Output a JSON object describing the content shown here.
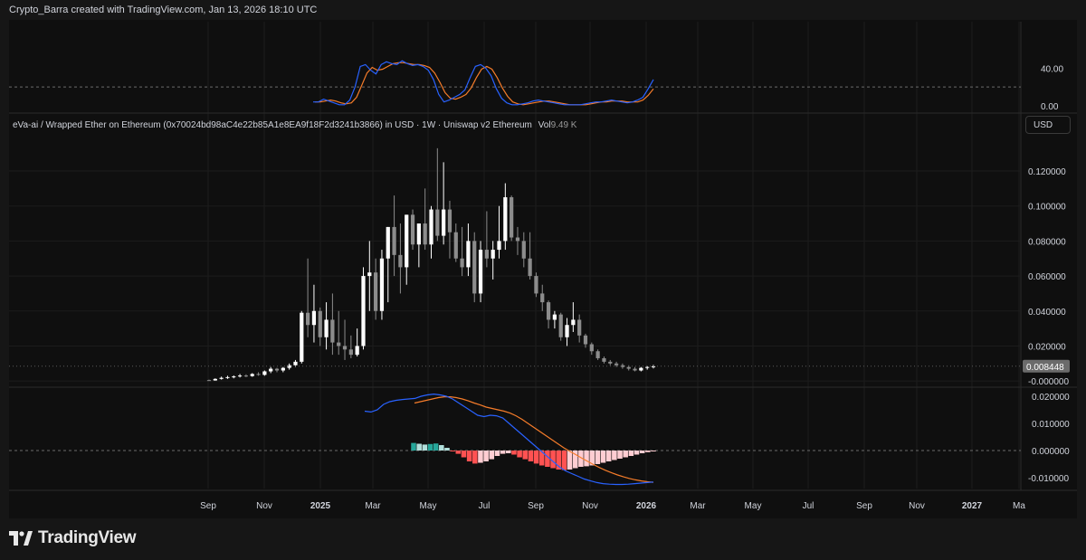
{
  "caption": "Crypto_Barra created with TradingView.com, Jan 13, 2026 18:10 UTC",
  "legend": {
    "symbol": "eVa-ai / Wrapped Ether on Ethereum (0x70024bd98aC4e22b85A1e8EA9f18F2d3241b3866) in USD · 1W · Uniswap v2 Ethereum",
    "vol_label": "Vol",
    "vol_value": "9.49 K"
  },
  "currency_button": "USD",
  "brand": "TradingView",
  "colors": {
    "background": "#0f0f0f",
    "up_candle": "#ffffff",
    "down_candle": "#8c8c8c",
    "blue_line": "#2962ff",
    "orange_line": "#f57c2a",
    "hist_pos_strong": "#26a69a",
    "hist_pos_weak": "#b2dfdb",
    "hist_neg_strong": "#ff5252",
    "hist_neg_weak": "#ffcdd2"
  },
  "chart_data": {
    "type": "candlestick",
    "time_axis": {
      "ticks": [
        "Sep",
        "Nov",
        "2025",
        "Mar",
        "May",
        "Jul",
        "Sep",
        "Nov",
        "2026",
        "Mar",
        "May",
        "Jul",
        "Sep",
        "Nov",
        "2027",
        "Ma"
      ],
      "bold": [
        "2025",
        "2026",
        "2027"
      ]
    },
    "price_axis": {
      "ticks": [
        "0.120000",
        "0.100000",
        "0.080000",
        "0.060000",
        "0.040000",
        "0.020000",
        "-0.000000"
      ],
      "ylim": [
        -0.002,
        0.135
      ],
      "last_price": "0.008448"
    },
    "stoch_axis": {
      "ticks": [
        "40.00",
        "0.00"
      ],
      "ylim": [
        -5,
        55
      ]
    },
    "macd_axis": {
      "ticks": [
        "0.020000",
        "0.010000",
        "0.000000",
        "-0.010000"
      ],
      "ylim": [
        -0.014,
        0.022
      ]
    },
    "candles": [
      [
        0.0005,
        0.0008,
        0.0001,
        0.0003
      ],
      [
        0.0003,
        0.0015,
        0.0002,
        0.0012
      ],
      [
        0.0012,
        0.0025,
        0.0008,
        0.0018
      ],
      [
        0.0018,
        0.003,
        0.0012,
        0.0022
      ],
      [
        0.0022,
        0.0032,
        0.0015,
        0.0026
      ],
      [
        0.0026,
        0.004,
        0.002,
        0.0031
      ],
      [
        0.0031,
        0.0038,
        0.0022,
        0.0028
      ],
      [
        0.0028,
        0.0045,
        0.0024,
        0.004
      ],
      [
        0.004,
        0.005,
        0.003,
        0.0035
      ],
      [
        0.0035,
        0.006,
        0.003,
        0.0055
      ],
      [
        0.0055,
        0.008,
        0.0045,
        0.007
      ],
      [
        0.007,
        0.0075,
        0.005,
        0.006
      ],
      [
        0.006,
        0.008,
        0.005,
        0.0075
      ],
      [
        0.0075,
        0.01,
        0.0065,
        0.009
      ],
      [
        0.009,
        0.012,
        0.008,
        0.011
      ],
      [
        0.011,
        0.04,
        0.01,
        0.039
      ],
      [
        0.039,
        0.07,
        0.025,
        0.032
      ],
      [
        0.032,
        0.055,
        0.022,
        0.04
      ],
      [
        0.04,
        0.042,
        0.02,
        0.025
      ],
      [
        0.025,
        0.045,
        0.018,
        0.035
      ],
      [
        0.035,
        0.05,
        0.015,
        0.022
      ],
      [
        0.022,
        0.04,
        0.015,
        0.02
      ],
      [
        0.02,
        0.035,
        0.012,
        0.018
      ],
      [
        0.018,
        0.026,
        0.013,
        0.015
      ],
      [
        0.015,
        0.03,
        0.014,
        0.02
      ],
      [
        0.02,
        0.065,
        0.018,
        0.06
      ],
      [
        0.06,
        0.08,
        0.04,
        0.062
      ],
      [
        0.062,
        0.07,
        0.035,
        0.04
      ],
      [
        0.04,
        0.075,
        0.035,
        0.07
      ],
      [
        0.07,
        0.088,
        0.045,
        0.088
      ],
      [
        0.088,
        0.106,
        0.06,
        0.072
      ],
      [
        0.072,
        0.09,
        0.05,
        0.065
      ],
      [
        0.065,
        0.095,
        0.055,
        0.095
      ],
      [
        0.095,
        0.098,
        0.075,
        0.078
      ],
      [
        0.078,
        0.09,
        0.065,
        0.09
      ],
      [
        0.09,
        0.11,
        0.075,
        0.078
      ],
      [
        0.078,
        0.1,
        0.07,
        0.098
      ],
      [
        0.098,
        0.133,
        0.08,
        0.083
      ],
      [
        0.083,
        0.125,
        0.078,
        0.098
      ],
      [
        0.098,
        0.103,
        0.07,
        0.085
      ],
      [
        0.085,
        0.09,
        0.068,
        0.07
      ],
      [
        0.07,
        0.088,
        0.06,
        0.065
      ],
      [
        0.065,
        0.09,
        0.06,
        0.08
      ],
      [
        0.08,
        0.085,
        0.045,
        0.05
      ],
      [
        0.05,
        0.08,
        0.045,
        0.075
      ],
      [
        0.075,
        0.097,
        0.065,
        0.07
      ],
      [
        0.07,
        0.08,
        0.058,
        0.075
      ],
      [
        0.075,
        0.1,
        0.07,
        0.08
      ],
      [
        0.08,
        0.113,
        0.075,
        0.105
      ],
      [
        0.105,
        0.106,
        0.08,
        0.082
      ],
      [
        0.082,
        0.088,
        0.072,
        0.08
      ],
      [
        0.08,
        0.085,
        0.065,
        0.07
      ],
      [
        0.07,
        0.085,
        0.058,
        0.06
      ],
      [
        0.06,
        0.062,
        0.048,
        0.05
      ],
      [
        0.05,
        0.055,
        0.04,
        0.045
      ],
      [
        0.045,
        0.046,
        0.03,
        0.035
      ],
      [
        0.035,
        0.04,
        0.03,
        0.038
      ],
      [
        0.038,
        0.039,
        0.023,
        0.025
      ],
      [
        0.025,
        0.036,
        0.02,
        0.032
      ],
      [
        0.032,
        0.045,
        0.028,
        0.035
      ],
      [
        0.035,
        0.038,
        0.022,
        0.026
      ],
      [
        0.026,
        0.027,
        0.019,
        0.021
      ],
      [
        0.021,
        0.022,
        0.015,
        0.017
      ],
      [
        0.017,
        0.018,
        0.012,
        0.013
      ],
      [
        0.013,
        0.014,
        0.01,
        0.011
      ],
      [
        0.011,
        0.012,
        0.009,
        0.01
      ],
      [
        0.01,
        0.011,
        0.008,
        0.009
      ],
      [
        0.009,
        0.01,
        0.007,
        0.008
      ],
      [
        0.008,
        0.009,
        0.006,
        0.007
      ],
      [
        0.007,
        0.008,
        0.0055,
        0.006
      ],
      [
        0.006,
        0.008,
        0.0055,
        0.0075
      ],
      [
        0.0075,
        0.0085,
        0.0065,
        0.008
      ],
      [
        0.008,
        0.0092,
        0.0072,
        0.0084
      ]
    ],
    "stoch_k": [
      4,
      4,
      7,
      5,
      3,
      1,
      1,
      6,
      20,
      42,
      44,
      38,
      34,
      44,
      47,
      45,
      44,
      48,
      45,
      43,
      44,
      42,
      38,
      28,
      12,
      4,
      6,
      9,
      12,
      17,
      30,
      42,
      44,
      40,
      32,
      18,
      8,
      3,
      1,
      1,
      2,
      3,
      5,
      6,
      5,
      4,
      3,
      2,
      1,
      1,
      1,
      1,
      2,
      3,
      4,
      4,
      5,
      6,
      5,
      4,
      3,
      4,
      6,
      9,
      18,
      28
    ],
    "stoch_d": [
      4,
      4,
      5,
      6,
      5,
      3,
      2,
      3,
      9,
      22,
      35,
      41,
      38,
      39,
      42,
      45,
      46,
      46,
      45,
      44,
      44,
      43,
      41,
      35,
      25,
      14,
      8,
      7,
      9,
      12,
      19,
      30,
      39,
      42,
      39,
      30,
      19,
      10,
      4,
      2,
      1,
      2,
      3,
      4,
      5,
      5,
      4,
      3,
      2,
      1,
      1,
      1,
      1,
      2,
      3,
      4,
      4,
      5,
      5,
      5,
      4,
      4,
      4,
      6,
      11,
      18
    ],
    "macd_line": [
      0.0145,
      0.0142,
      0.015,
      0.017,
      0.018,
      0.0185,
      0.0188,
      0.019,
      0.0192,
      0.02,
      0.0205,
      0.0208,
      0.0205,
      0.02,
      0.019,
      0.0175,
      0.016,
      0.0145,
      0.013,
      0.0125,
      0.013,
      0.0128,
      0.012,
      0.01,
      0.008,
      0.006,
      0.004,
      0.002,
      0.0,
      -0.002,
      -0.004,
      -0.006,
      -0.0075,
      -0.0085,
      -0.0095,
      -0.0105,
      -0.0112,
      -0.0118,
      -0.0122,
      -0.0124,
      -0.0125,
      -0.0125,
      -0.0124,
      -0.0122,
      -0.012,
      -0.0118,
      -0.0116
    ],
    "signal_line": [
      0.0175,
      0.018,
      0.0185,
      0.019,
      0.0195,
      0.0198,
      0.0198,
      0.0195,
      0.019,
      0.0183,
      0.0175,
      0.0168,
      0.016,
      0.0155,
      0.015,
      0.0145,
      0.0138,
      0.0128,
      0.0115,
      0.01,
      0.0085,
      0.007,
      0.0055,
      0.004,
      0.0025,
      0.001,
      -0.0003,
      -0.0015,
      -0.0028,
      -0.004,
      -0.0052,
      -0.0063,
      -0.0073,
      -0.0082,
      -0.009,
      -0.0097,
      -0.0103,
      -0.0108,
      -0.0112,
      -0.0115,
      -0.0117
    ],
    "histogram": [
      0.0028,
      0.0025,
      0.0022,
      0.0024,
      0.0026,
      0.002,
      0.001,
      -0.0003,
      -0.0012,
      -0.0025,
      -0.004,
      -0.0048,
      -0.0045,
      -0.004,
      -0.0032,
      -0.002,
      -0.0012,
      -0.001,
      -0.0015,
      -0.0025,
      -0.0032,
      -0.004,
      -0.0048,
      -0.0055,
      -0.006,
      -0.0065,
      -0.007,
      -0.0072,
      -0.007,
      -0.0065,
      -0.006,
      -0.0058,
      -0.0055,
      -0.005,
      -0.0045,
      -0.004,
      -0.0035,
      -0.003,
      -0.0025,
      -0.002,
      -0.0015,
      -0.001,
      -0.0006,
      -0.0003
    ]
  }
}
